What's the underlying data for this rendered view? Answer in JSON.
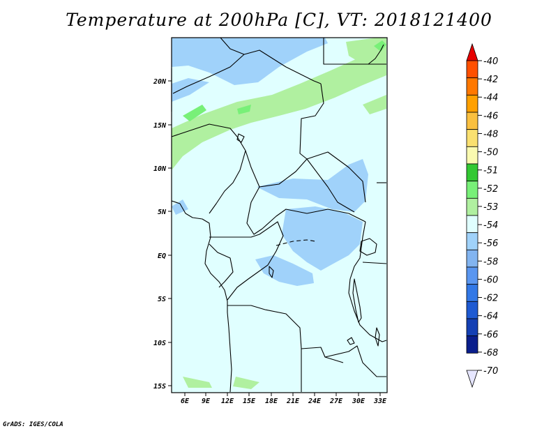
{
  "title": "Temperature at 200hPa [C], VT: 2018121400",
  "credit": "GrADS: IGES/COLA",
  "map": {
    "lat_labels": [
      "20N",
      "15N",
      "10N",
      "5N",
      "EQ",
      "5S",
      "10S",
      "15S"
    ],
    "lon_labels": [
      "6E",
      "9E",
      "12E",
      "15E",
      "18E",
      "21E",
      "24E",
      "27E",
      "30E",
      "33E"
    ],
    "background_color": "#e0ffff"
  },
  "colorbar": {
    "labels": [
      "-40",
      "-42",
      "-44",
      "-46",
      "-48",
      "-50",
      "-51",
      "-52",
      "-53",
      "-54",
      "-56",
      "-58",
      "-60",
      "-62",
      "-64",
      "-66",
      "-68",
      "-70"
    ],
    "colors": [
      "#ff2800",
      "#ff5000",
      "#ff7800",
      "#ffa000",
      "#fac040",
      "#fae070",
      "#fafab0",
      "#32c832",
      "#78f078",
      "#b0f0a0",
      "#e0ffff",
      "#a0d2fa",
      "#82b4f0",
      "#5a96f0",
      "#3278e6",
      "#1e5ad2",
      "#1440b4",
      "#0a1e8c",
      "#000064"
    ],
    "top_arrow_color": "#e60000",
    "bottom_arrow_color": "#e6e6ff"
  }
}
